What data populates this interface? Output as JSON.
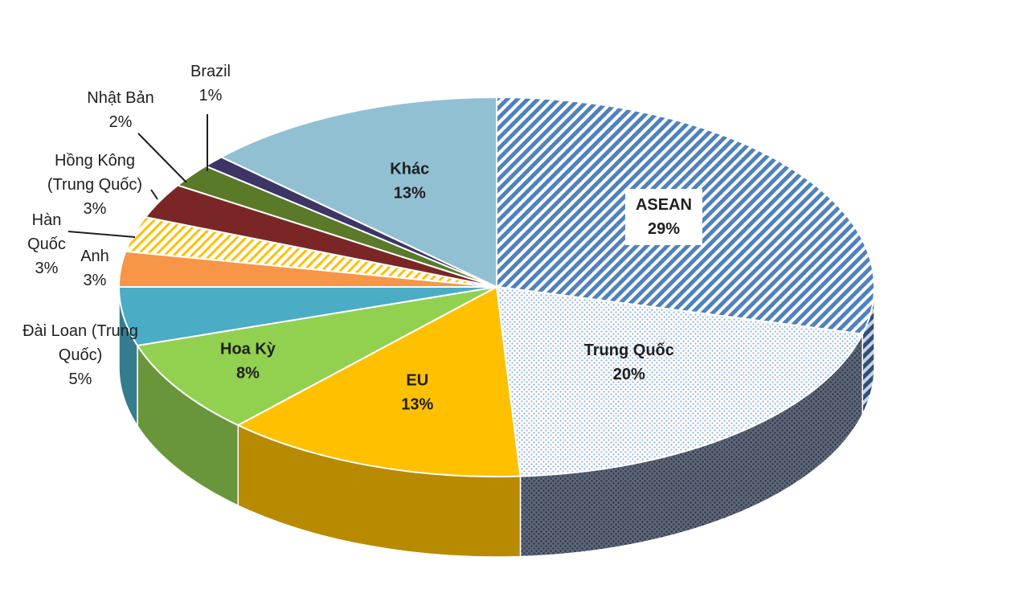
{
  "chart_data": {
    "type": "pie",
    "style": "3d-pie",
    "slices": [
      {
        "name": "ASEAN",
        "value": 29,
        "label": "29%",
        "color": "#4f81bd",
        "pattern": "diagonal-stripes",
        "bold": true
      },
      {
        "name": "Trung Quốc",
        "value": 20,
        "label": "20%",
        "color": "#dce6f1",
        "pattern": "dots",
        "bold": true
      },
      {
        "name": "EU",
        "value": 13,
        "label": "13%",
        "color": "#ffc000",
        "pattern": "solid",
        "bold": true
      },
      {
        "name": "Hoa Kỳ",
        "value": 8,
        "label": "8%",
        "color": "#92d050",
        "pattern": "solid",
        "bold": true
      },
      {
        "name": "Đài Loan (Trung Quốc)",
        "value": 5,
        "label": "5%",
        "color": "#4bacc6",
        "pattern": "solid",
        "bold": false
      },
      {
        "name": "Anh",
        "value": 3,
        "label": "3%",
        "color": "#f79646",
        "pattern": "solid",
        "bold": false
      },
      {
        "name": "Hàn Quốc",
        "value": 3,
        "label": "3%",
        "color": "#ffc000",
        "pattern": "light-stripes",
        "bold": false
      },
      {
        "name": "Hồng Kông (Trung Quốc)",
        "value": 3,
        "label": "3%",
        "color": "#7b2626",
        "pattern": "solid",
        "bold": false
      },
      {
        "name": "Nhật Bản",
        "value": 2,
        "label": "2%",
        "color": "#5a7a2a",
        "pattern": "solid",
        "bold": false
      },
      {
        "name": "Brazil",
        "value": 1,
        "label": "1%",
        "color": "#3d3566",
        "pattern": "solid",
        "bold": false
      },
      {
        "name": "Khác",
        "value": 13,
        "label": "13%",
        "color": "#92c0d3",
        "pattern": "solid",
        "bold": true
      }
    ],
    "label_lines": {
      "ASEAN": [
        "ASEAN",
        "29%"
      ],
      "Trung Quốc": [
        "Trung Quốc",
        "20%"
      ],
      "EU": [
        "EU",
        "13%"
      ],
      "Hoa Kỳ": [
        "Hoa Kỳ",
        "8%"
      ],
      "Đài Loan (Trung Quốc)": [
        "Đài Loan (Trung",
        "Quốc)",
        "5%"
      ],
      "Anh": [
        "Anh",
        "3%"
      ],
      "Hàn Quốc": [
        "Hàn",
        "Quốc",
        "3%"
      ],
      "Hồng Kông (Trung Quốc)": [
        "Hồng Kông",
        "(Trung Quốc)",
        "3%"
      ],
      "Nhật Bản": [
        "Nhật Bản",
        "2%"
      ],
      "Brazil": [
        "Brazil",
        "1%"
      ],
      "Khác": [
        "Khác",
        "13%"
      ]
    }
  }
}
